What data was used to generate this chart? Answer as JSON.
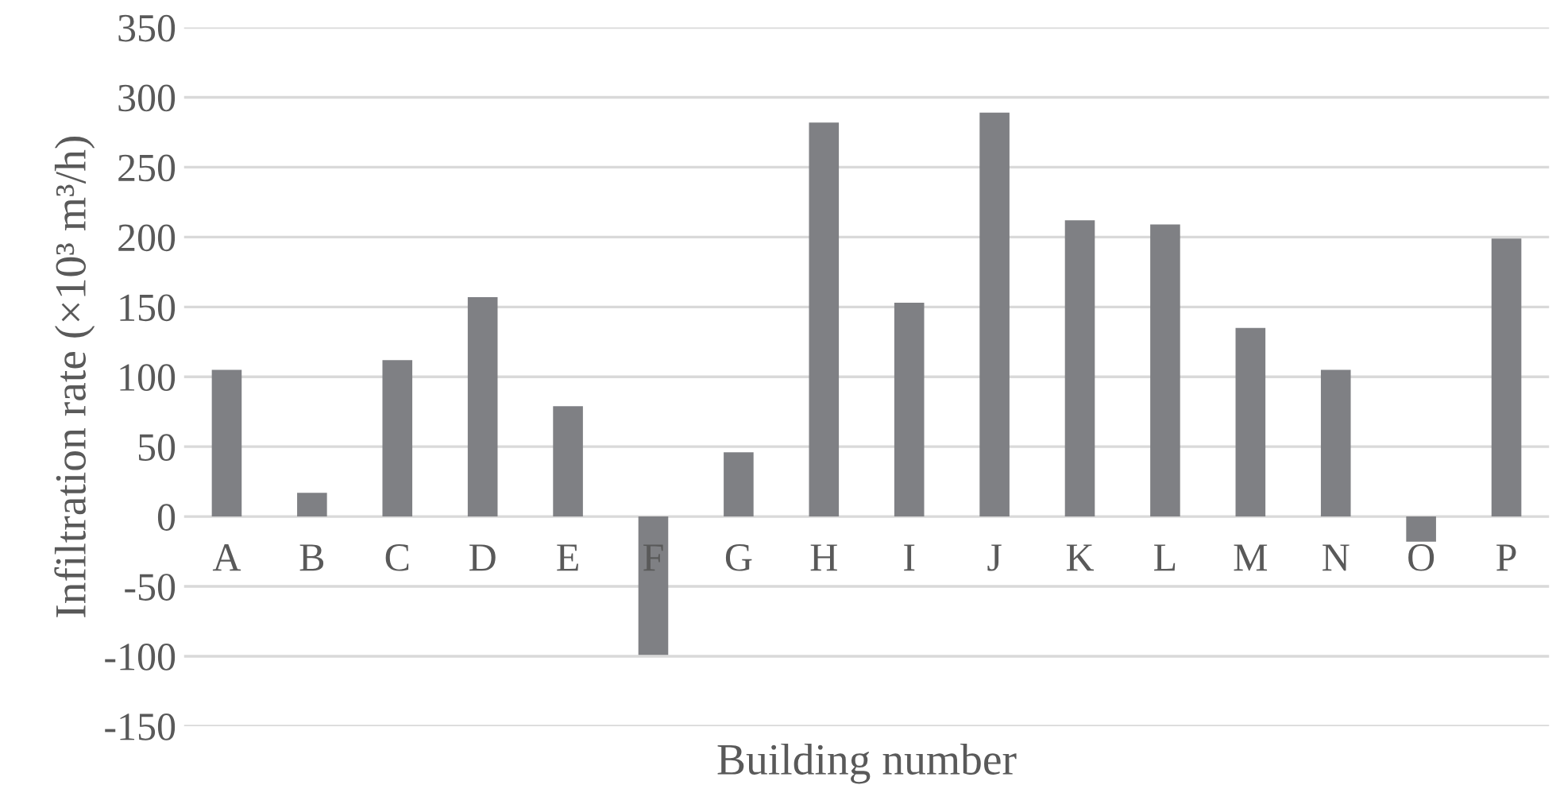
{
  "chart_data": {
    "type": "bar",
    "xlabel": "Building number",
    "ylabel": "Infiltration rate (×10³ m³/h)",
    "categories": [
      "A",
      "B",
      "C",
      "D",
      "E",
      "F",
      "G",
      "H",
      "I",
      "J",
      "K",
      "L",
      "M",
      "N",
      "O",
      "P"
    ],
    "values": [
      105,
      17,
      112,
      157,
      79,
      -99,
      46,
      282,
      153,
      289,
      212,
      209,
      135,
      105,
      -18,
      199
    ],
    "color": "#7f8084",
    "ylim": [
      -150,
      350
    ],
    "yticks": [
      -150,
      -100,
      -50,
      0,
      50,
      100,
      150,
      200,
      250,
      300,
      350
    ],
    "grid": "y"
  }
}
